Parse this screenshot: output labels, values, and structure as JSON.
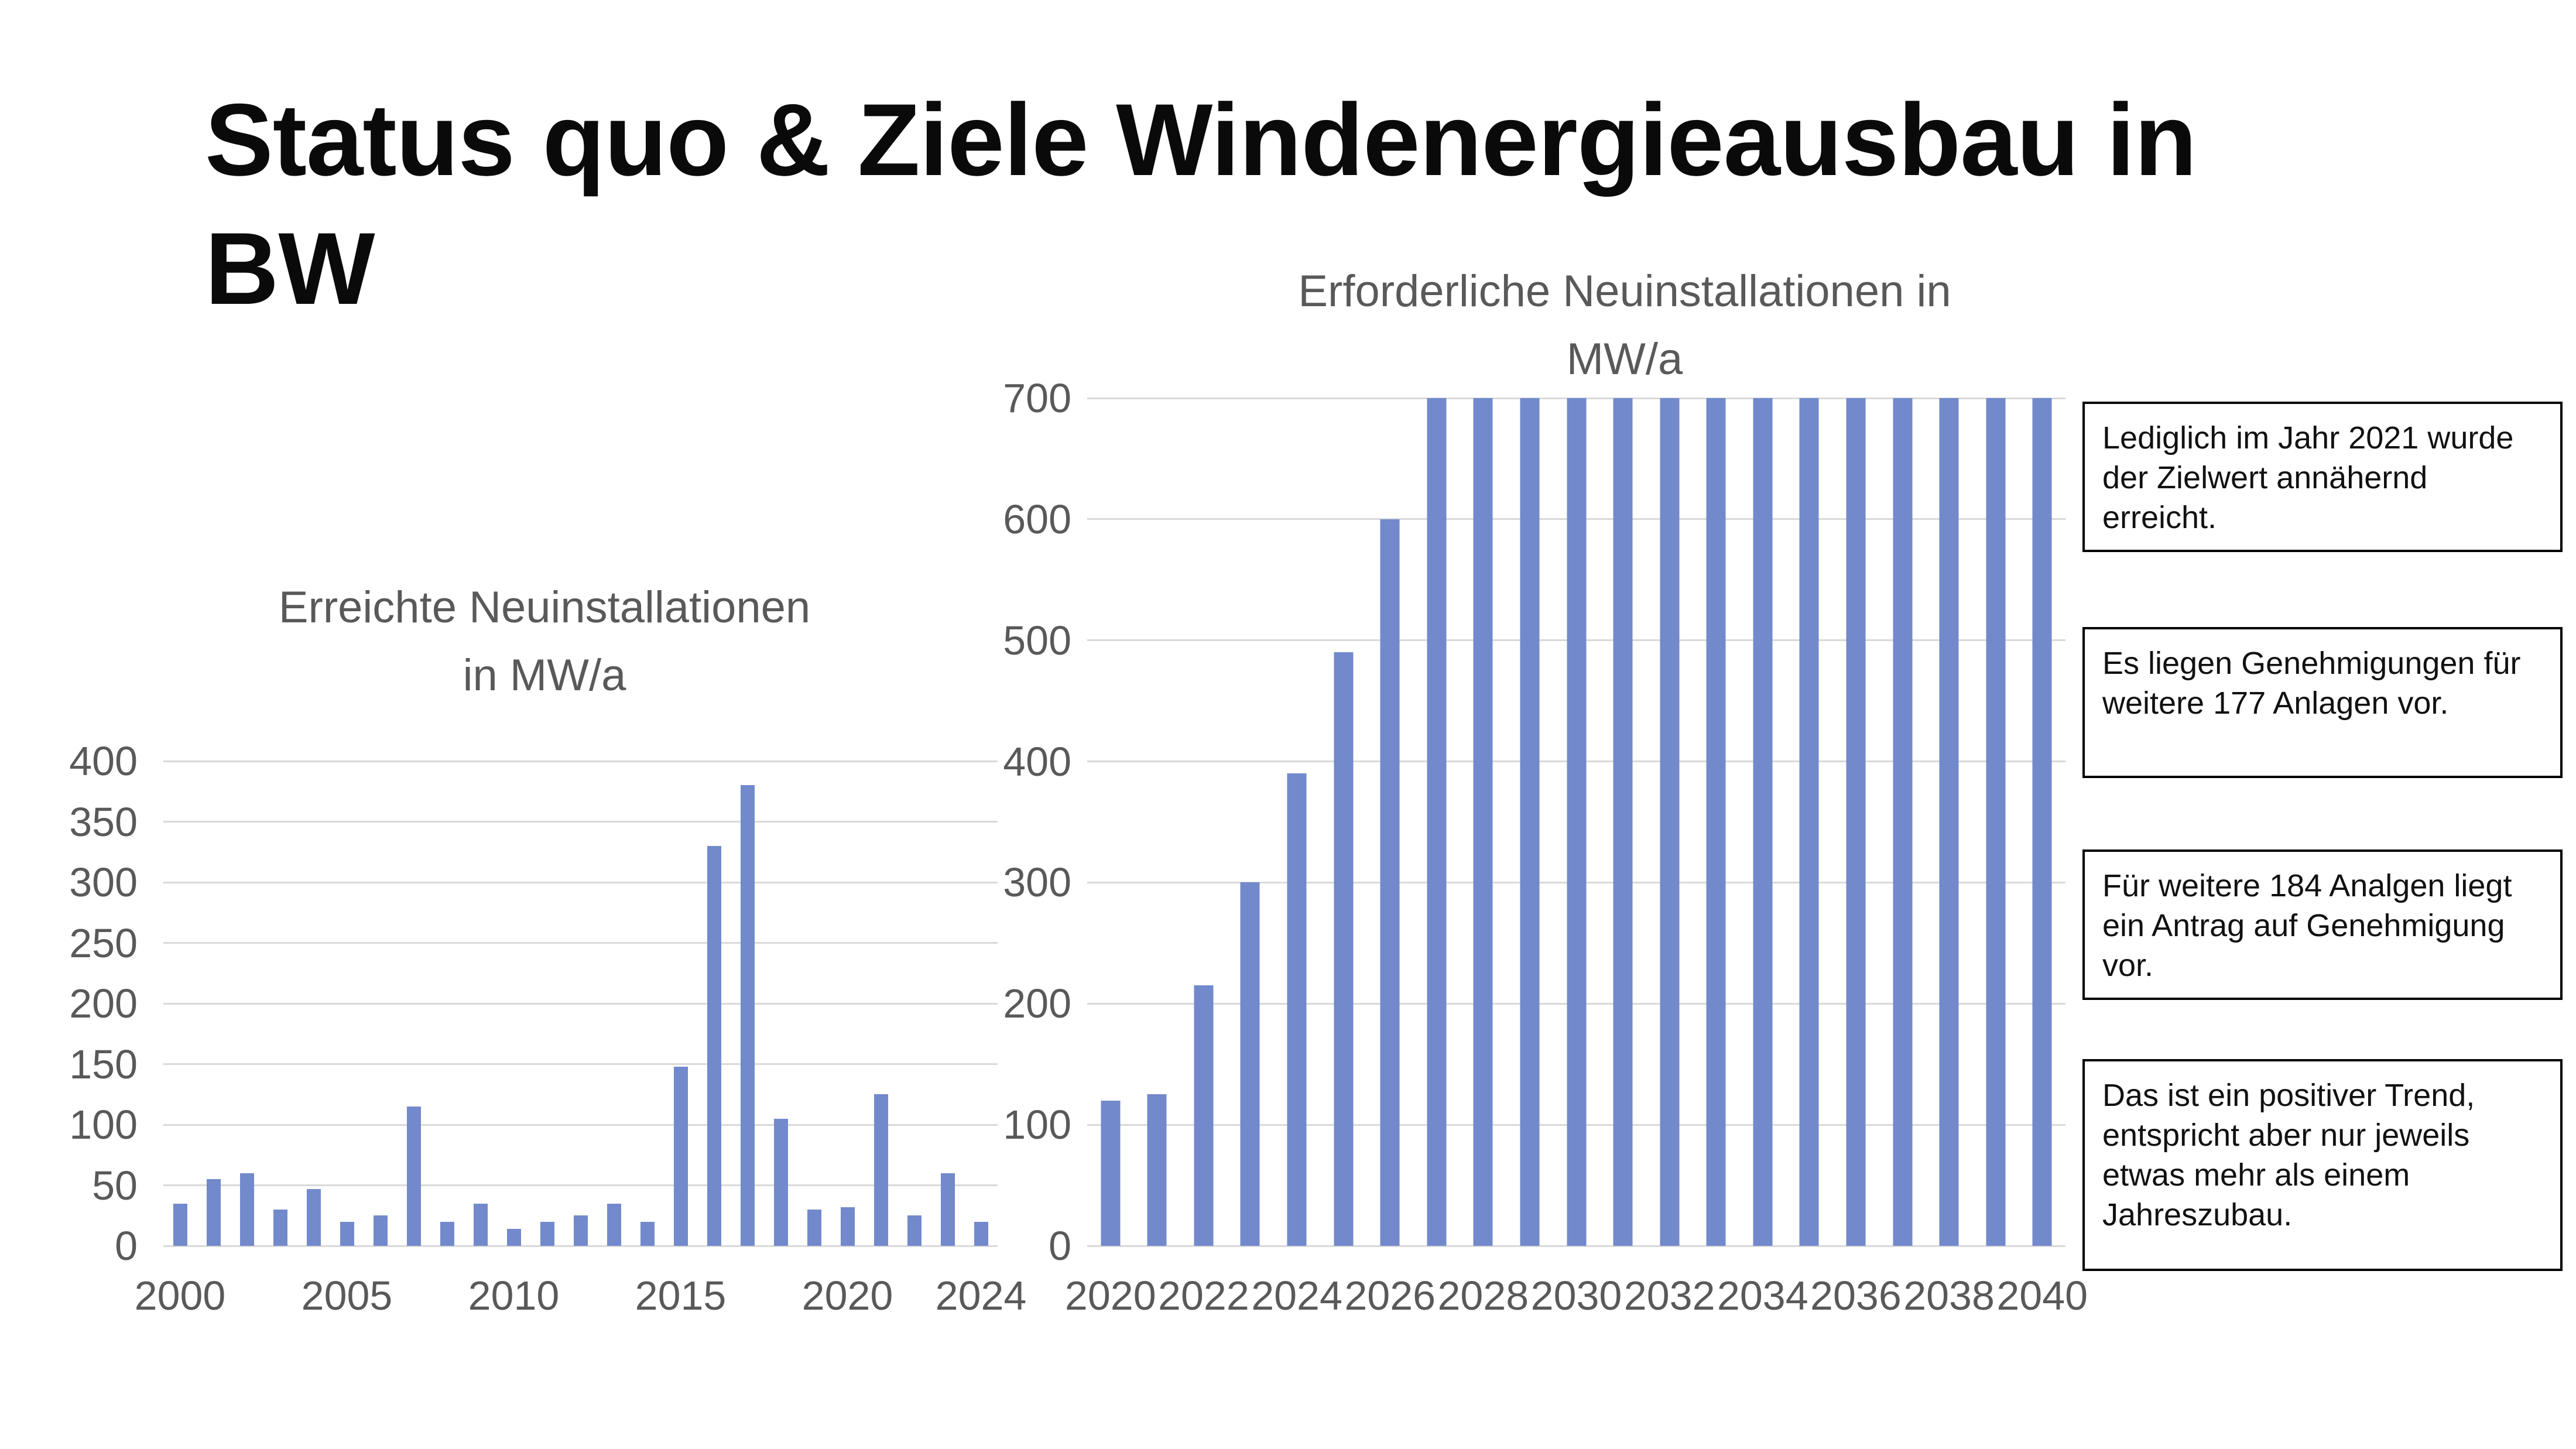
{
  "page": {
    "title": "Status quo & Ziele Windenergieausbau in BW",
    "title_lines": [
      "Status quo & Ziele Windenergieausbau in",
      "BW"
    ]
  },
  "colors": {
    "bar": "#7289CB",
    "gridline": "#D9D9D9",
    "axis_text": "#595959",
    "title_text": "#0A0A0A",
    "note_border": "#000000"
  },
  "chart_data": [
    {
      "id": "achieved-installations",
      "type": "bar",
      "title": "Erreichte Neuinstallationen in MW/a",
      "title_lines": [
        "Erreichte Neuinstallationen",
        "in MW/a"
      ],
      "xlabel": "",
      "ylabel": "",
      "x": [
        2000,
        2001,
        2002,
        2003,
        2004,
        2005,
        2006,
        2007,
        2008,
        2009,
        2010,
        2011,
        2012,
        2013,
        2014,
        2015,
        2016,
        2017,
        2018,
        2019,
        2020,
        2021,
        2022,
        2023,
        2024
      ],
      "values": [
        35,
        55,
        60,
        30,
        47,
        20,
        25,
        115,
        20,
        35,
        14,
        20,
        25,
        35,
        20,
        148,
        330,
        380,
        105,
        30,
        32,
        125,
        25,
        60,
        20
      ],
      "ylim": [
        0,
        400
      ],
      "ytick_step": 50,
      "xticks": [
        2000,
        2005,
        2010,
        2015,
        2020,
        2024
      ],
      "grid": true,
      "legend": "none"
    },
    {
      "id": "required-installations",
      "type": "bar",
      "title": "Erforderliche Neuinstallationen in MW/a",
      "title_lines": [
        "Erforderliche Neuinstallationen in",
        "MW/a"
      ],
      "xlabel": "",
      "ylabel": "",
      "x": [
        2020,
        2021,
        2022,
        2023,
        2024,
        2025,
        2026,
        2027,
        2028,
        2029,
        2030,
        2031,
        2032,
        2033,
        2034,
        2035,
        2036,
        2037,
        2038,
        2039,
        2040
      ],
      "values": [
        120,
        125,
        215,
        300,
        390,
        490,
        600,
        700,
        700,
        700,
        700,
        700,
        700,
        700,
        700,
        700,
        700,
        700,
        700,
        700,
        700
      ],
      "ylim": [
        0,
        700
      ],
      "ytick_step": 100,
      "xticks": [
        2020,
        2022,
        2024,
        2026,
        2028,
        2030,
        2032,
        2034,
        2036,
        2038,
        2040
      ],
      "grid": true,
      "legend": "none"
    }
  ],
  "notes": [
    {
      "text": "Lediglich im Jahr 2021 wurde der Zielwert annähernd erreicht."
    },
    {
      "text": "Es liegen Genehmigungen für weitere 177 Anlagen vor."
    },
    {
      "text": "Für weitere 184 Analgen liegt ein Antrag auf Genehmigung vor."
    },
    {
      "text": "Das ist ein positiver Trend, entspricht aber nur jeweils etwas mehr als einem Jahreszubau."
    }
  ]
}
